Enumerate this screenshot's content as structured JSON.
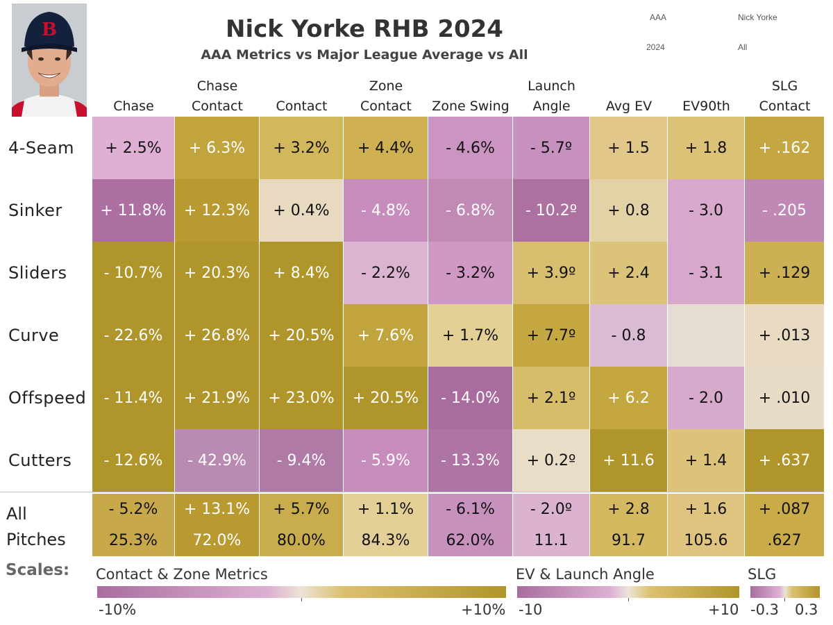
{
  "header": {
    "title": "Nick Yorke RHB 2024",
    "subtitle": "AAA Metrics vs Major League Average vs All",
    "filters": {
      "level": "AAA",
      "player": "Nick Yorke",
      "year": "2024",
      "scope": "All"
    }
  },
  "photo": {
    "icon": "player-headshot",
    "cap_logo": "B"
  },
  "columns": [
    {
      "line1": "",
      "line2": "Chase"
    },
    {
      "line1": "Chase",
      "line2": "Contact"
    },
    {
      "line1": "",
      "line2": "Contact"
    },
    {
      "line1": "Zone",
      "line2": "Contact"
    },
    {
      "line1": "",
      "line2": "Zone Swing"
    },
    {
      "line1": "Launch",
      "line2": "Angle"
    },
    {
      "line1": "",
      "line2": "Avg EV"
    },
    {
      "line1": "",
      "line2": "EV90th"
    },
    {
      "line1": "SLG",
      "line2": "Contact"
    }
  ],
  "rows": [
    {
      "label": "4-Seam",
      "values": [
        "+ 2.5%",
        "+ 6.3%",
        "+ 3.2%",
        "+ 4.4%",
        "- 4.6%",
        "- 5.7º",
        "+ 1.5",
        "+ 1.8",
        "+ .162"
      ]
    },
    {
      "label": "Sinker",
      "values": [
        "+ 11.8%",
        "+ 12.3%",
        "+ 0.4%",
        "- 4.8%",
        "- 6.8%",
        "- 10.2º",
        "+ 0.8",
        "- 3.0",
        "- .205"
      ]
    },
    {
      "label": "Sliders",
      "values": [
        "- 10.7%",
        "+ 20.3%",
        "+ 8.4%",
        "- 2.2%",
        "- 3.2%",
        "+ 3.9º",
        "+ 2.4",
        "- 3.1",
        "+ .129"
      ]
    },
    {
      "label": "Curve",
      "values": [
        "- 22.6%",
        "+ 26.8%",
        "+ 20.5%",
        "+ 7.6%",
        "+ 1.7%",
        "+ 7.7º",
        "- 0.8",
        "",
        "+ .013"
      ]
    },
    {
      "label": "Offspeed",
      "values": [
        "- 11.4%",
        "+ 21.9%",
        "+ 23.0%",
        "+ 20.5%",
        "- 14.0%",
        "+ 2.1º",
        "+ 6.2",
        "- 2.0",
        "+ .010"
      ]
    },
    {
      "label": "Cutters",
      "values": [
        "- 12.6%",
        "- 42.9%",
        "- 9.4%",
        "- 5.9%",
        "- 13.3%",
        "+ 0.2º",
        "+ 11.6",
        "+ 1.4",
        "+ .637"
      ]
    }
  ],
  "all_row": {
    "label_line1": "All",
    "label_line2": "Pitches",
    "diffs": [
      "- 5.2%",
      "+ 13.1%",
      "+ 5.7%",
      "+ 1.1%",
      "- 6.1%",
      "- 2.0º",
      "+ 2.8",
      "+ 1.6",
      "+ .087"
    ],
    "values": [
      "25.3%",
      "72.0%",
      "80.0%",
      "84.3%",
      "62.0%",
      "11.1",
      "91.7",
      "105.6",
      ".627"
    ]
  },
  "colors": {
    "purple_dark": "#a86d9e",
    "purple_mid": "#c48bb9",
    "purple_light": "#ddb0d2",
    "neutral": "#e8dcc2",
    "gold_light": "#dfc27b",
    "gold_mid": "#c9a93e",
    "gold_dark": "#b0952a"
  },
  "cell_colors": [
    [
      "#dfb0d4",
      "#c2a43e",
      "#d3b75c",
      "#cfb053",
      "#cc94c2",
      "#c891bf",
      "#e1c88a",
      "#dcc277",
      "#c4a642"
    ],
    [
      "#ad6fa2",
      "#b89a31",
      "#e7dac0",
      "#c68dbc",
      "#c08ab5",
      "#ac70a1",
      "#e2d2a5",
      "#d8a9cd",
      "#bf88b5"
    ],
    [
      "#b0952a",
      "#b0952a",
      "#b0952a",
      "#dbb4d2",
      "#cf98c5",
      "#d8be6e",
      "#dcc37a",
      "#d7a8cc",
      "#cdb053"
    ],
    [
      "#b0952a",
      "#b0952a",
      "#b0952a",
      "#c2a43e",
      "#e4cf95",
      "#c6a843",
      "#dbbad3",
      "#e6ddd2",
      "#e8dbc2"
    ],
    [
      "#b0952a",
      "#b0952a",
      "#b0952a",
      "#b0952a",
      "#a86d9e",
      "#d7bd6a",
      "#c4a640",
      "#d7a9cb",
      "#e8dcc6"
    ],
    [
      "#b0952a",
      "#b98bb2",
      "#b07aa6",
      "#c68dbc",
      "#ae74a3",
      "#eaddc8",
      "#b0952a",
      "#dcc379",
      "#b0952a"
    ]
  ],
  "all_colors": [
    "#c8a94a",
    "#b89a31",
    "#c9ad4c",
    "#e4cf96",
    "#c691bd",
    "#dbb3d1",
    "#d5b961",
    "#dec47f",
    "#c9ab48"
  ],
  "scales": {
    "label": "Scales:",
    "legends": [
      {
        "title": "Contact & Zone Metrics",
        "min": "-10%",
        "max": "+10%"
      },
      {
        "title": "EV & Launch Angle",
        "min": "-10",
        "max": "+10"
      },
      {
        "title": "SLG",
        "min": "-0.3",
        "max": "0.3"
      }
    ]
  }
}
